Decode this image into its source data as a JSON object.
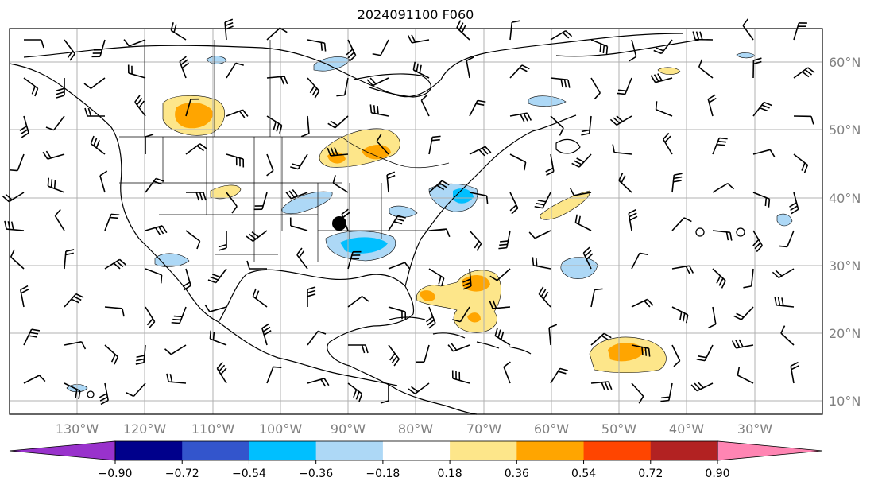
{
  "title": "2024091100 F060",
  "lat_labels": [
    "60°N",
    "50°N",
    "40°N",
    "30°N",
    "20°N",
    "10°N"
  ],
  "lon_labels": [
    "130°W",
    "120°W",
    "110°W",
    "100°W",
    "90°W",
    "80°W",
    "70°W",
    "60°W",
    "50°W",
    "40°W",
    "30°W"
  ],
  "colorbar": {
    "ticks": [
      "−0.90",
      "−0.72",
      "−0.54",
      "−0.36",
      "−0.18",
      "0.18",
      "0.36",
      "0.54",
      "0.72",
      "0.90"
    ],
    "colors": [
      "#9932cc",
      "#00008b",
      "#3355cc",
      "#00bfff",
      "#add8f6",
      "#ffffff",
      "#fde68a",
      "#ffa500",
      "#ff4500",
      "#b22222",
      "#ff85b3"
    ]
  },
  "palette": {
    "grid": "#b0b0b0",
    "coast": "#000000",
    "light_blue": "#add8f6",
    "blue": "#00bfff",
    "light_yellow": "#fde68a",
    "orange": "#ffa500"
  }
}
